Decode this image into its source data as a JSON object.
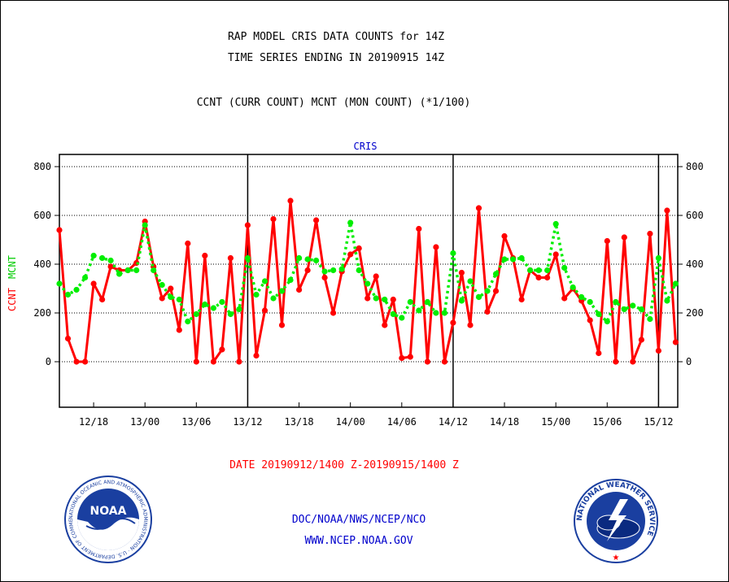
{
  "title": {
    "line1": "RAP MODEL CRIS DATA COUNTS for 14Z",
    "line2": "TIME SERIES ENDING IN 20190915 14Z"
  },
  "subtitle": "CCNT (CURR COUNT) MCNT (MON COUNT) (*1/100)",
  "date_range": "DATE 20190912/1400 Z-20190915/1400 Z",
  "credits": {
    "line1": "DOC/NOAA/NWS/NCEP/NCO",
    "line2": "WWW.NCEP.NOAA.GOV"
  },
  "logos": {
    "noaa": {
      "text": "NOAA",
      "ring_text": "NATIONAL OCEANIC AND ATMOSPHERIC ADMINISTRATION · U.S. DEPARTMENT OF COMMERCE"
    },
    "nws": {
      "ring_text": "NATIONAL WEATHER SERVICE"
    }
  },
  "chart_data": {
    "type": "line",
    "title": "CRIS",
    "ylabel_left": [
      "CCNT",
      "MCNT"
    ],
    "ylim": [
      -180,
      850
    ],
    "yticks": [
      0,
      200,
      400,
      600,
      800
    ],
    "ytick_labels": [
      "0",
      "200",
      "400",
      "600",
      "800"
    ],
    "x_hours_range": [
      0,
      72
    ],
    "xtick_hours": [
      4,
      10,
      16,
      22,
      28,
      34,
      40,
      46,
      52,
      58,
      64,
      70
    ],
    "xtick_labels": [
      "12/18",
      "13/00",
      "13/06",
      "13/12",
      "13/18",
      "14/00",
      "14/06",
      "14/12",
      "14/18",
      "15/00",
      "15/06",
      "15/12"
    ],
    "vertical_lines_hours": [
      22,
      46,
      70
    ],
    "grid": "horizontal dotted",
    "colors": {
      "ccnt": "#ff0000",
      "mcnt": "#00ee00",
      "title": "#0000cc"
    },
    "series": [
      {
        "name": "CCNT",
        "style": "solid",
        "values": [
          540,
          95,
          0,
          0,
          320,
          255,
          390,
          375,
          375,
          405,
          575,
          390,
          260,
          300,
          130,
          485,
          0,
          435,
          0,
          50,
          425,
          0,
          560,
          25,
          210,
          585,
          150,
          660,
          295,
          375,
          580,
          345,
          200,
          370,
          440,
          465,
          260,
          350,
          150,
          255,
          15,
          20,
          545,
          0,
          470,
          0,
          160,
          365,
          150,
          630,
          205,
          290,
          515,
          425,
          255,
          375,
          345,
          345,
          440,
          260,
          300,
          250,
          170,
          35,
          495,
          0,
          510,
          0,
          90,
          525,
          45,
          620,
          80
        ]
      },
      {
        "name": "MCNT",
        "style": "dotted",
        "values": [
          320,
          275,
          295,
          345,
          435,
          425,
          415,
          360,
          375,
          375,
          560,
          375,
          315,
          265,
          255,
          165,
          195,
          235,
          220,
          245,
          195,
          215,
          425,
          275,
          330,
          260,
          290,
          335,
          425,
          420,
          415,
          370,
          375,
          380,
          570,
          375,
          320,
          260,
          255,
          195,
          180,
          245,
          210,
          245,
          200,
          200,
          445,
          250,
          330,
          265,
          290,
          360,
          420,
          420,
          425,
          375,
          375,
          375,
          565,
          385,
          305,
          265,
          245,
          195,
          165,
          245,
          215,
          230,
          215,
          175,
          425,
          250,
          320
        ]
      }
    ]
  }
}
